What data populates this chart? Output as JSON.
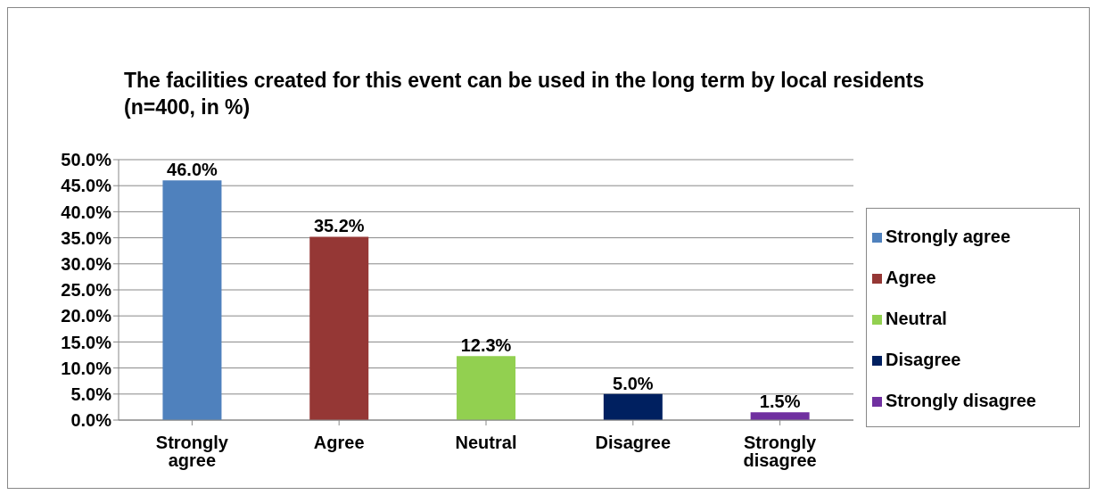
{
  "chart_data": {
    "type": "bar",
    "title": "The facilities created for this event can be used in the long term by local residents (n=400, in %)",
    "categories": [
      "Strongly agree",
      "Agree",
      "Neutral",
      "Disagree",
      "Strongly disagree"
    ],
    "series": [
      {
        "name": "Strongly agree",
        "color": "#4f81bd",
        "values": [
          46.0,
          null,
          null,
          null,
          null
        ],
        "value_labels": [
          "46.0%",
          null,
          null,
          null,
          null
        ]
      },
      {
        "name": "Agree",
        "color": "#953735",
        "values": [
          null,
          35.2,
          null,
          null,
          null
        ],
        "value_labels": [
          null,
          "35.2%",
          null,
          null,
          null
        ]
      },
      {
        "name": "Neutral",
        "color": "#92d050",
        "values": [
          null,
          null,
          12.3,
          null,
          null
        ],
        "value_labels": [
          null,
          null,
          "12.3%",
          null,
          null
        ]
      },
      {
        "name": "Disagree",
        "color": "#002060",
        "values": [
          null,
          null,
          null,
          5.0,
          null
        ],
        "value_labels": [
          null,
          null,
          null,
          "5.0%",
          null
        ]
      },
      {
        "name": "Strongly disagree",
        "color": "#7030a0",
        "values": [
          null,
          null,
          null,
          null,
          1.5
        ],
        "value_labels": [
          null,
          null,
          null,
          null,
          "1.5%"
        ]
      }
    ],
    "stacked": true,
    "ylim": [
      0,
      50
    ],
    "yticks": [
      {
        "value": 0,
        "label": "0.0%"
      },
      {
        "value": 5,
        "label": "5.0%"
      },
      {
        "value": 10,
        "label": "10.0%"
      },
      {
        "value": 15,
        "label": "15.0%"
      },
      {
        "value": 20,
        "label": "20.0%"
      },
      {
        "value": 25,
        "label": "25.0%"
      },
      {
        "value": 30,
        "label": "30.0%"
      },
      {
        "value": 35,
        "label": "35.0%"
      },
      {
        "value": 40,
        "label": "40.0%"
      },
      {
        "value": 45,
        "label": "45.0%"
      },
      {
        "value": 50,
        "label": "50.0%"
      }
    ],
    "grid": "y",
    "legend": "right"
  }
}
